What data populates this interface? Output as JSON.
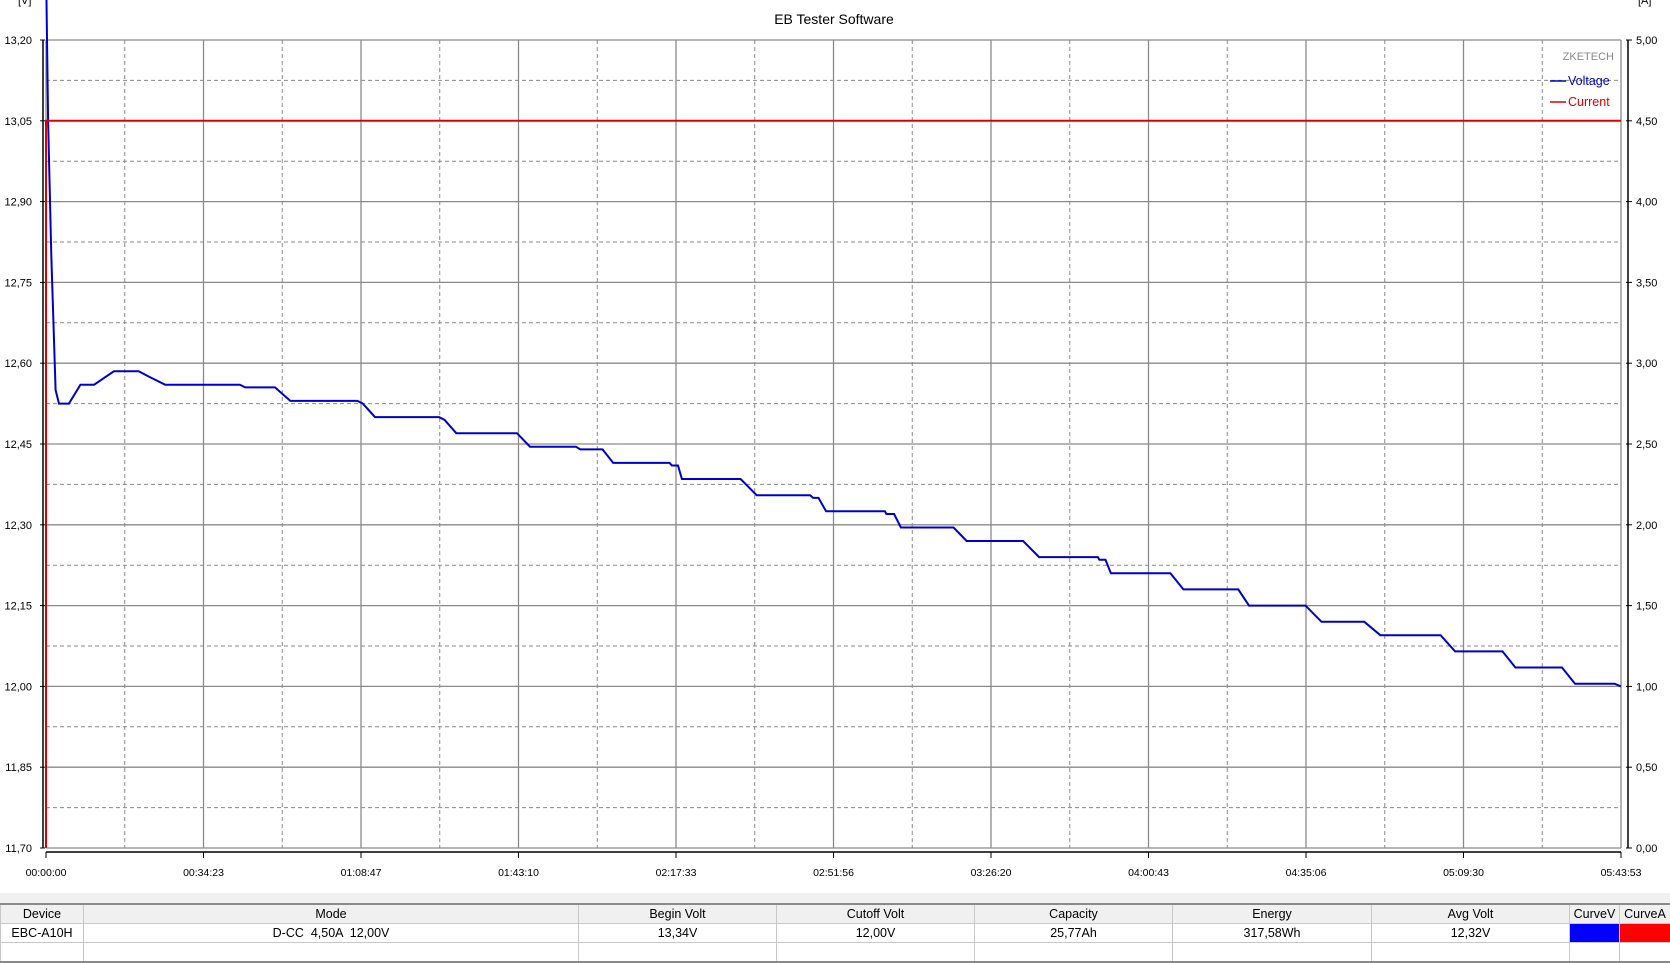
{
  "chart_data": {
    "type": "line",
    "title": "EB Tester Software",
    "watermark": "ZKETECH",
    "ylabel_left": "[V]",
    "ylabel_right": "[A]",
    "ylim_left": [
      11.7,
      13.2
    ],
    "ylim_right": [
      0.0,
      5.0
    ],
    "xlim": [
      "00:00:00",
      "05:43:53"
    ],
    "grid": true,
    "legend": "top-right",
    "y_ticks_left": [
      "11,70",
      "11,85",
      "12,00",
      "12,15",
      "12,30",
      "12,45",
      "12,60",
      "12,75",
      "12,90",
      "13,05",
      "13,20"
    ],
    "y_ticks_right": [
      "0,00",
      "0,50",
      "1,00",
      "1,50",
      "2,00",
      "2,50",
      "3,00",
      "3,50",
      "4,00",
      "4,50",
      "5,00"
    ],
    "x_ticks": [
      "00:00:00",
      "00:34:23",
      "01:08:47",
      "01:43:10",
      "02:17:33",
      "02:51:56",
      "03:26:20",
      "04:00:43",
      "04:35:06",
      "05:09:30",
      "05:43:53"
    ],
    "series": [
      {
        "name": "Voltage",
        "axis": "left",
        "color": "#0000cc",
        "points": [
          [
            "00:00:00",
            13.34
          ],
          [
            "00:00:28",
            13.05
          ],
          [
            "00:01:10",
            12.8
          ],
          [
            "00:02:06",
            12.55
          ],
          [
            "00:02:50",
            12.525
          ],
          [
            "00:05:00",
            12.525
          ],
          [
            "00:07:30",
            12.56
          ],
          [
            "00:10:30",
            12.56
          ],
          [
            "00:14:50",
            12.585
          ],
          [
            "00:20:15",
            12.585
          ],
          [
            "00:22:30",
            12.575
          ],
          [
            "00:26:00",
            12.56
          ],
          [
            "00:42:20",
            12.56
          ],
          [
            "00:43:30",
            12.555
          ],
          [
            "00:50:00",
            12.555
          ],
          [
            "00:53:20",
            12.53
          ],
          [
            "01:08:00",
            12.53
          ],
          [
            "01:09:10",
            12.525
          ],
          [
            "01:11:50",
            12.5
          ],
          [
            "01:25:50",
            12.5
          ],
          [
            "01:27:00",
            12.495
          ],
          [
            "01:29:35",
            12.47
          ],
          [
            "01:42:50",
            12.47
          ],
          [
            "01:45:40",
            12.445
          ],
          [
            "01:55:40",
            12.445
          ],
          [
            "01:56:40",
            12.44
          ],
          [
            "02:01:30",
            12.44
          ],
          [
            "02:03:50",
            12.415
          ],
          [
            "02:16:10",
            12.415
          ],
          [
            "02:16:40",
            12.41
          ],
          [
            "02:18:00",
            12.41
          ],
          [
            "02:18:50",
            12.385
          ],
          [
            "02:31:40",
            12.385
          ],
          [
            "02:35:10",
            12.355
          ],
          [
            "02:46:50",
            12.355
          ],
          [
            "02:47:30",
            12.35
          ],
          [
            "02:48:40",
            12.35
          ],
          [
            "02:50:20",
            12.325
          ],
          [
            "03:03:10",
            12.325
          ],
          [
            "03:03:30",
            12.32
          ],
          [
            "03:05:10",
            12.32
          ],
          [
            "03:06:40",
            12.295
          ],
          [
            "03:18:10",
            12.295
          ],
          [
            "03:21:00",
            12.27
          ],
          [
            "03:33:20",
            12.27
          ],
          [
            "03:36:50",
            12.24
          ],
          [
            "03:49:40",
            12.24
          ],
          [
            "03:50:00",
            12.235
          ],
          [
            "03:51:20",
            12.235
          ],
          [
            "03:52:30",
            12.21
          ],
          [
            "04:05:30",
            12.21
          ],
          [
            "04:08:20",
            12.18
          ],
          [
            "04:20:20",
            12.18
          ],
          [
            "04:22:40",
            12.15
          ],
          [
            "04:35:00",
            12.15
          ],
          [
            "04:38:30",
            12.12
          ],
          [
            "04:47:50",
            12.12
          ],
          [
            "04:51:20",
            12.095
          ],
          [
            "05:04:30",
            12.095
          ],
          [
            "05:07:40",
            12.065
          ],
          [
            "05:18:00",
            12.065
          ],
          [
            "05:20:50",
            12.035
          ],
          [
            "05:31:00",
            12.035
          ],
          [
            "05:33:50",
            12.005
          ],
          [
            "05:42:30",
            12.005
          ],
          [
            "05:43:53",
            12.0
          ]
        ]
      },
      {
        "name": "Current",
        "axis": "right",
        "color": "#dd0000",
        "points": [
          [
            "00:00:00",
            0.0
          ],
          [
            "00:00:00",
            4.5
          ],
          [
            "05:43:53",
            4.5
          ]
        ]
      }
    ]
  },
  "table": {
    "headers": [
      "Device",
      "Mode",
      "Begin Volt",
      "Cutoff Volt",
      "Capacity",
      "Energy",
      "Avg Volt",
      "CurveV",
      "CurveA"
    ],
    "row": [
      "EBC-A10H",
      "D-CC  4,50A  12,00V",
      "13,34V",
      "12,00V",
      "25,77Ah",
      "317,58Wh",
      "12,32V"
    ],
    "curve_colors": {
      "voltage": "#0000ff",
      "current": "#ff0000"
    }
  }
}
